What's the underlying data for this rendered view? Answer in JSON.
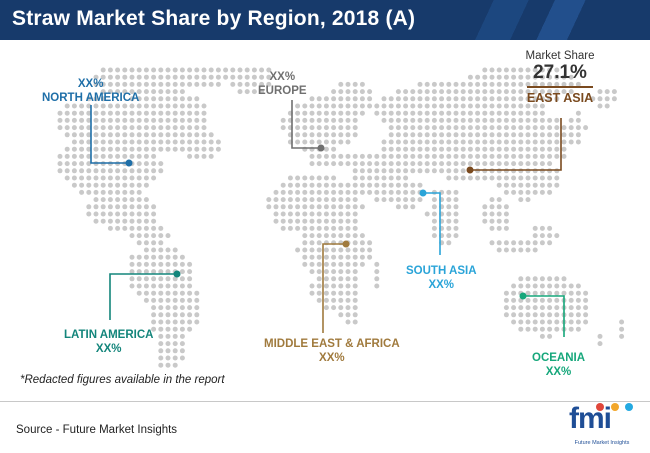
{
  "header": {
    "title": "Straw Market Share by Region, 2018 (A)",
    "background_color": "#173a6b"
  },
  "chart_data": {
    "type": "map",
    "title": "Straw Market Share by Region, 2018 (A)",
    "regions": [
      {
        "key": "north_america",
        "name": "NORTH AMERICA",
        "value": "XX%",
        "color": "#1f6fa8"
      },
      {
        "key": "europe",
        "name": "EUROPE",
        "value": "XX%",
        "color": "#707070"
      },
      {
        "key": "east_asia",
        "name": "EAST ASIA",
        "value": "27.1%",
        "caption": "Market Share",
        "color": "#7a4a1f"
      },
      {
        "key": "south_asia",
        "name": "SOUTH ASIA",
        "value": "XX%",
        "color": "#2aa4d8"
      },
      {
        "key": "latin_america",
        "name": "LATIN AMERICA",
        "value": "XX%",
        "color": "#13857b"
      },
      {
        "key": "mea",
        "name": "MIDDLE EAST & AFRICA",
        "value": "XX%",
        "color": "#a07a3d"
      },
      {
        "key": "oceania",
        "name": "OCEANIA",
        "value": "XX%",
        "color": "#16a77b"
      }
    ]
  },
  "footnote": "*Redacted figures available in the report",
  "source": "Source - Future Market Insights",
  "logo": {
    "text": "fmi",
    "tagline": "Future Market Insights",
    "icon": "fmi-logo"
  }
}
